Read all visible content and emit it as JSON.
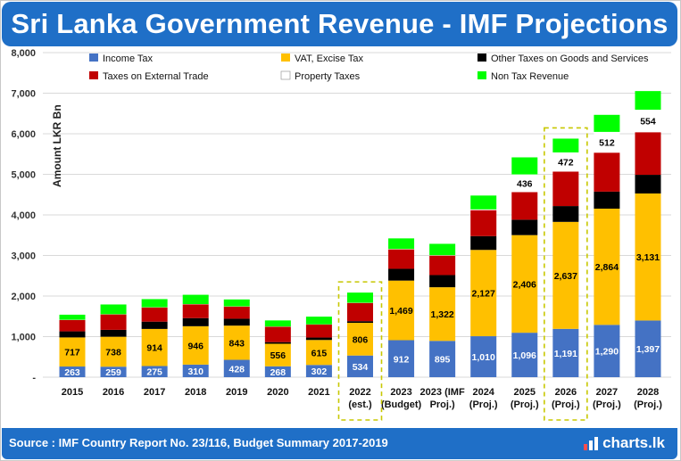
{
  "title": "Sri Lanka Government Revenue - IMF Projections",
  "source": "Source : IMF Country Report No. 23/116, Budget Summary 2017-2019",
  "brand": "charts.lk",
  "chart_data": {
    "type": "bar",
    "stacked": true,
    "ylabel": "Amount LKR Bn",
    "ylim": [
      0,
      8000
    ],
    "yticks": [
      "-",
      "1,000",
      "2,000",
      "3,000",
      "4,000",
      "5,000",
      "6,000",
      "7,000",
      "8,000"
    ],
    "grid": true,
    "legend_position": "top",
    "categories": [
      [
        "2015"
      ],
      [
        "2016"
      ],
      [
        "2017"
      ],
      [
        "2018"
      ],
      [
        "2019"
      ],
      [
        "2020"
      ],
      [
        "2021"
      ],
      [
        "2022",
        "(est.)"
      ],
      [
        "2023",
        "(Budget)"
      ],
      [
        "2023 (IMF",
        "Proj.)"
      ],
      [
        "2024",
        "(Proj.)"
      ],
      [
        "2025",
        "(Proj.)"
      ],
      [
        "2026",
        "(Proj.)"
      ],
      [
        "2027",
        "(Proj.)"
      ],
      [
        "2028",
        "(Proj.)"
      ]
    ],
    "highlighted": [
      7,
      12
    ],
    "series": [
      {
        "name": "Income Tax",
        "color": "#4472c4",
        "label_color": "#ffffff",
        "values": [
          263,
          259,
          275,
          310,
          428,
          268,
          302,
          534,
          912,
          895,
          1010,
          1096,
          1191,
          1290,
          1397
        ],
        "labels": [
          "263",
          "259",
          "275",
          "310",
          "428",
          "268",
          "302",
          "534",
          "912",
          "895",
          "1,010",
          "1,096",
          "1,191",
          "1,290",
          "1,397"
        ]
      },
      {
        "name": "VAT, Excise Tax",
        "color": "#ffc000",
        "label_color": "#000000",
        "values": [
          717,
          738,
          914,
          946,
          843,
          556,
          615,
          806,
          1469,
          1322,
          2127,
          2406,
          2637,
          2864,
          3131
        ],
        "labels": [
          "717",
          "738",
          "914",
          "946",
          "843",
          "556",
          "615",
          "806",
          "1,469",
          "1,322",
          "2,127",
          "2,406",
          "2,637",
          "2,864",
          "3,131"
        ]
      },
      {
        "name": "Other Taxes on Goods and Services",
        "color": "#000000",
        "values": [
          150,
          170,
          180,
          200,
          170,
          40,
          60,
          40,
          290,
          300,
          340,
          380,
          390,
          420,
          460
        ]
      },
      {
        "name": "Taxes on External Trade",
        "color": "#c00000",
        "values": [
          280,
          380,
          350,
          340,
          300,
          380,
          320,
          450,
          480,
          480,
          640,
          680,
          850,
          960,
          1050
        ]
      },
      {
        "name": "Property Taxes",
        "color": "#ffffff",
        "label_color": "#000000",
        "values": [
          5,
          5,
          5,
          5,
          5,
          5,
          5,
          5,
          10,
          10,
          20,
          436,
          472,
          512,
          554
        ],
        "labels": [
          "",
          "",
          "",
          "",
          "",
          "",
          "",
          "",
          "",
          "",
          "",
          "436",
          "472",
          "512",
          "554"
        ]
      },
      {
        "name": "Non Tax Revenue",
        "color": "#00ff00",
        "values": [
          125,
          240,
          200,
          230,
          170,
          150,
          190,
          250,
          260,
          280,
          340,
          420,
          340,
          420,
          460
        ]
      }
    ]
  }
}
